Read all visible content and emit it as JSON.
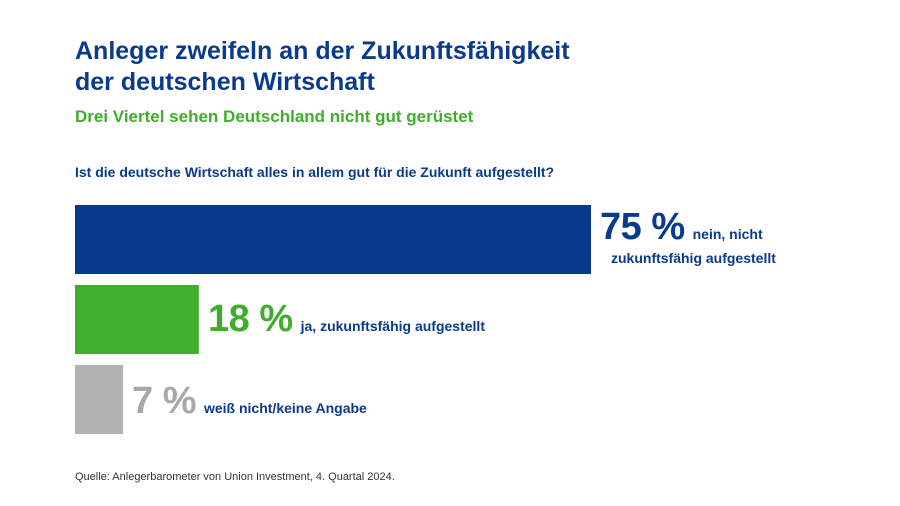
{
  "header": {
    "title_line1": "Anleger zweifeln an der Zukunftsfähigkeit",
    "title_line2": "der deutschen Wirtschaft",
    "subtitle": "Drei Viertel sehen Deutschland nicht gut gerüstet",
    "question": "Ist die deutsche Wirtschaft alles in allem gut für die Zukunft aufgestellt?"
  },
  "labels": [
    {
      "pct": "75 %",
      "desc_line1": "nein, nicht",
      "desc_line2": "zukunftsfähig aufgestellt"
    },
    {
      "pct": "18 %",
      "desc_line1": "ja, zukunftsfähig aufgestellt"
    },
    {
      "pct": "7 %",
      "desc_line1": "weiß nicht/keine Angabe"
    }
  ],
  "source": "Quelle: Anlegerbarometer von Union Investment, 4. Quartal 2024.",
  "colors": {
    "navy": "#0a3a8c",
    "green": "#3fae2a",
    "gray": "#b2b2b2"
  },
  "chart_data": {
    "type": "bar",
    "orientation": "horizontal",
    "title": "Ist die deutsche Wirtschaft alles in allem gut für die Zukunft aufgestellt?",
    "unit": "%",
    "categories": [
      "nein, nicht zukunftsfähig aufgestellt",
      "ja, zukunftsfähig aufgestellt",
      "weiß nicht/keine Angabe"
    ],
    "values": [
      75,
      18,
      7
    ],
    "colors": [
      "#0a3a8c",
      "#3fae2a",
      "#b2b2b2"
    ],
    "xlim": [
      0,
      75
    ],
    "grid": false,
    "legend": "none"
  }
}
